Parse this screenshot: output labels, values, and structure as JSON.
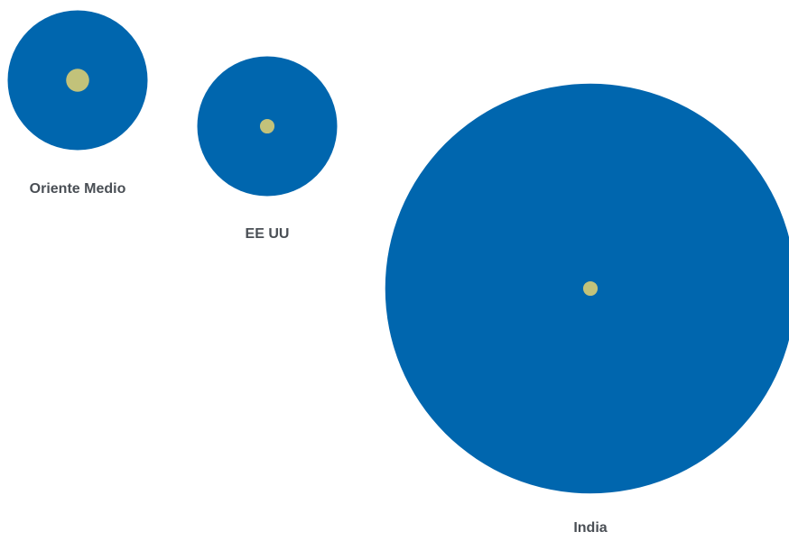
{
  "chart_data": {
    "type": "bubble",
    "title": "",
    "items": [
      {
        "name": "Oriente Medio",
        "outer_value": 1,
        "inner_value": 0.0272
      },
      {
        "name": "EE UU",
        "outer_value": 1,
        "inner_value": 0.0108
      },
      {
        "name": "India",
        "outer_value": 8.6,
        "inner_value": 0.0108
      }
    ]
  },
  "colors": {
    "outer_circle": "#0066ae",
    "inner_circle": "#c2c27a",
    "label_text": "#4a4f55"
  }
}
